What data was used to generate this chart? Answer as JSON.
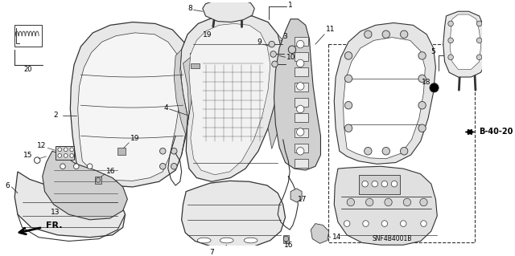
{
  "bg_color": "#ffffff",
  "line_color": "#333333",
  "fill_light": "#e8e8e8",
  "fill_mid": "#d0d0d0",
  "fill_dark": "#b8b8b8",
  "ref_code": "SNF4B4001B",
  "ref_b": "B-40-20",
  "figsize": [
    6.4,
    3.19
  ],
  "dpi": 100
}
